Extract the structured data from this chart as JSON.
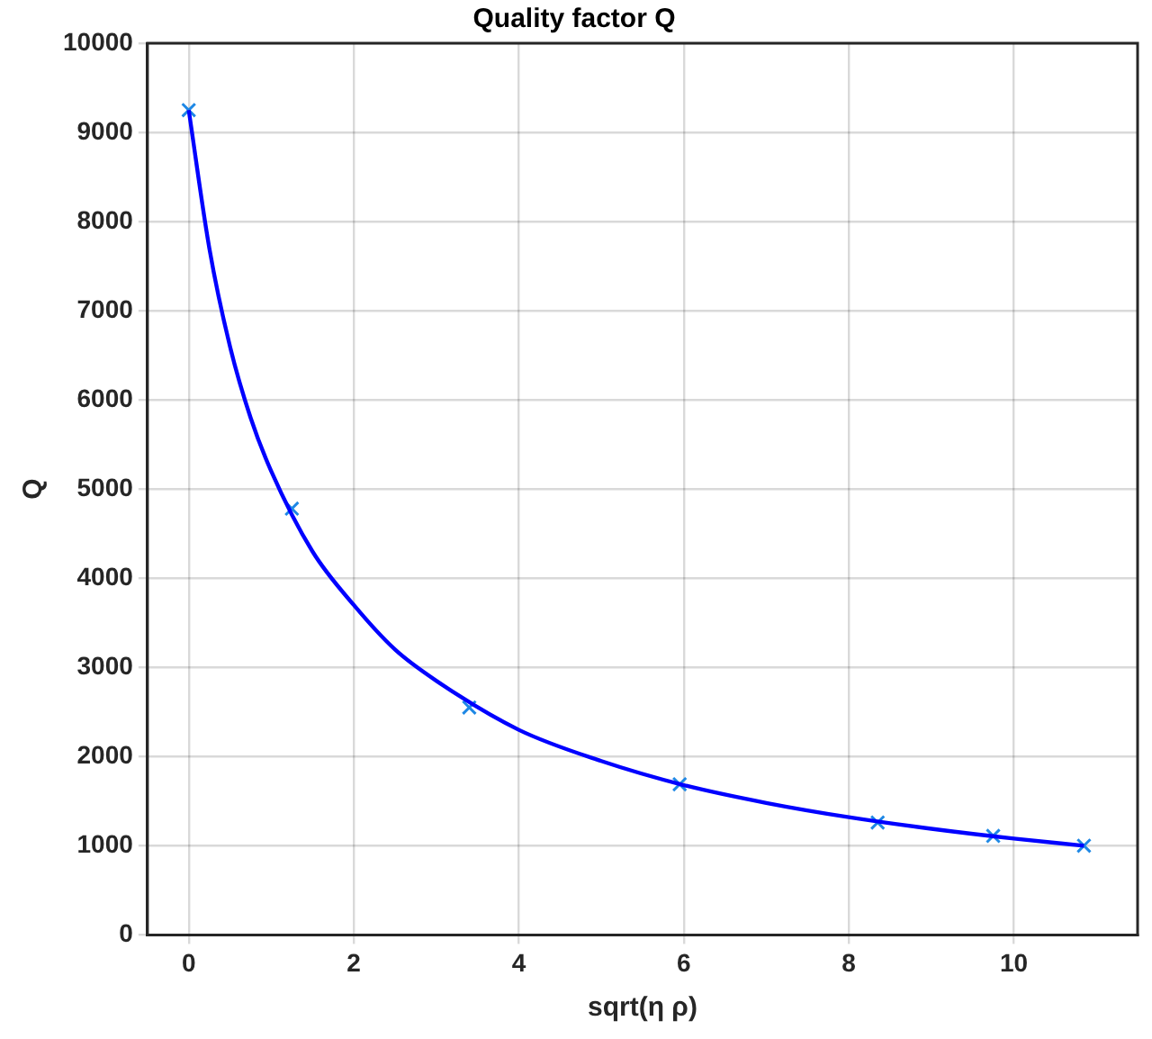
{
  "chart_data": {
    "type": "scatter",
    "title": "Quality factor Q",
    "xlabel": "sqrt(η ρ)",
    "ylabel": "Q",
    "xlim": [
      -0.5,
      11.5
    ],
    "xticks": [
      0,
      2,
      4,
      6,
      8,
      10
    ],
    "ylim": [
      0,
      10000
    ],
    "yticks": [
      0,
      1000,
      2000,
      3000,
      4000,
      5000,
      6000,
      7000,
      8000,
      9000,
      10000
    ],
    "grid": true,
    "legend": false,
    "series": [
      {
        "type": "line",
        "color": "#0000ff",
        "marker": "none",
        "line_style": "solid",
        "x": [
          0,
          0.25,
          0.5,
          0.75,
          1,
          1.5,
          2,
          2.5,
          3,
          4,
          5,
          6,
          7,
          8,
          9,
          10,
          10.85
        ],
        "values": [
          9250,
          7700,
          6600,
          5800,
          5200,
          4300,
          3700,
          3200,
          2850,
          2300,
          1950,
          1680,
          1480,
          1320,
          1190,
          1080,
          1000
        ]
      },
      {
        "type": "scatter",
        "color": "#1e88e5",
        "marker": "cross",
        "x": [
          0,
          1.25,
          3.4,
          5.95,
          8.35,
          9.75,
          10.85
        ],
        "values": [
          9250,
          4780,
          2550,
          1690,
          1260,
          1110,
          1000
        ]
      }
    ]
  }
}
